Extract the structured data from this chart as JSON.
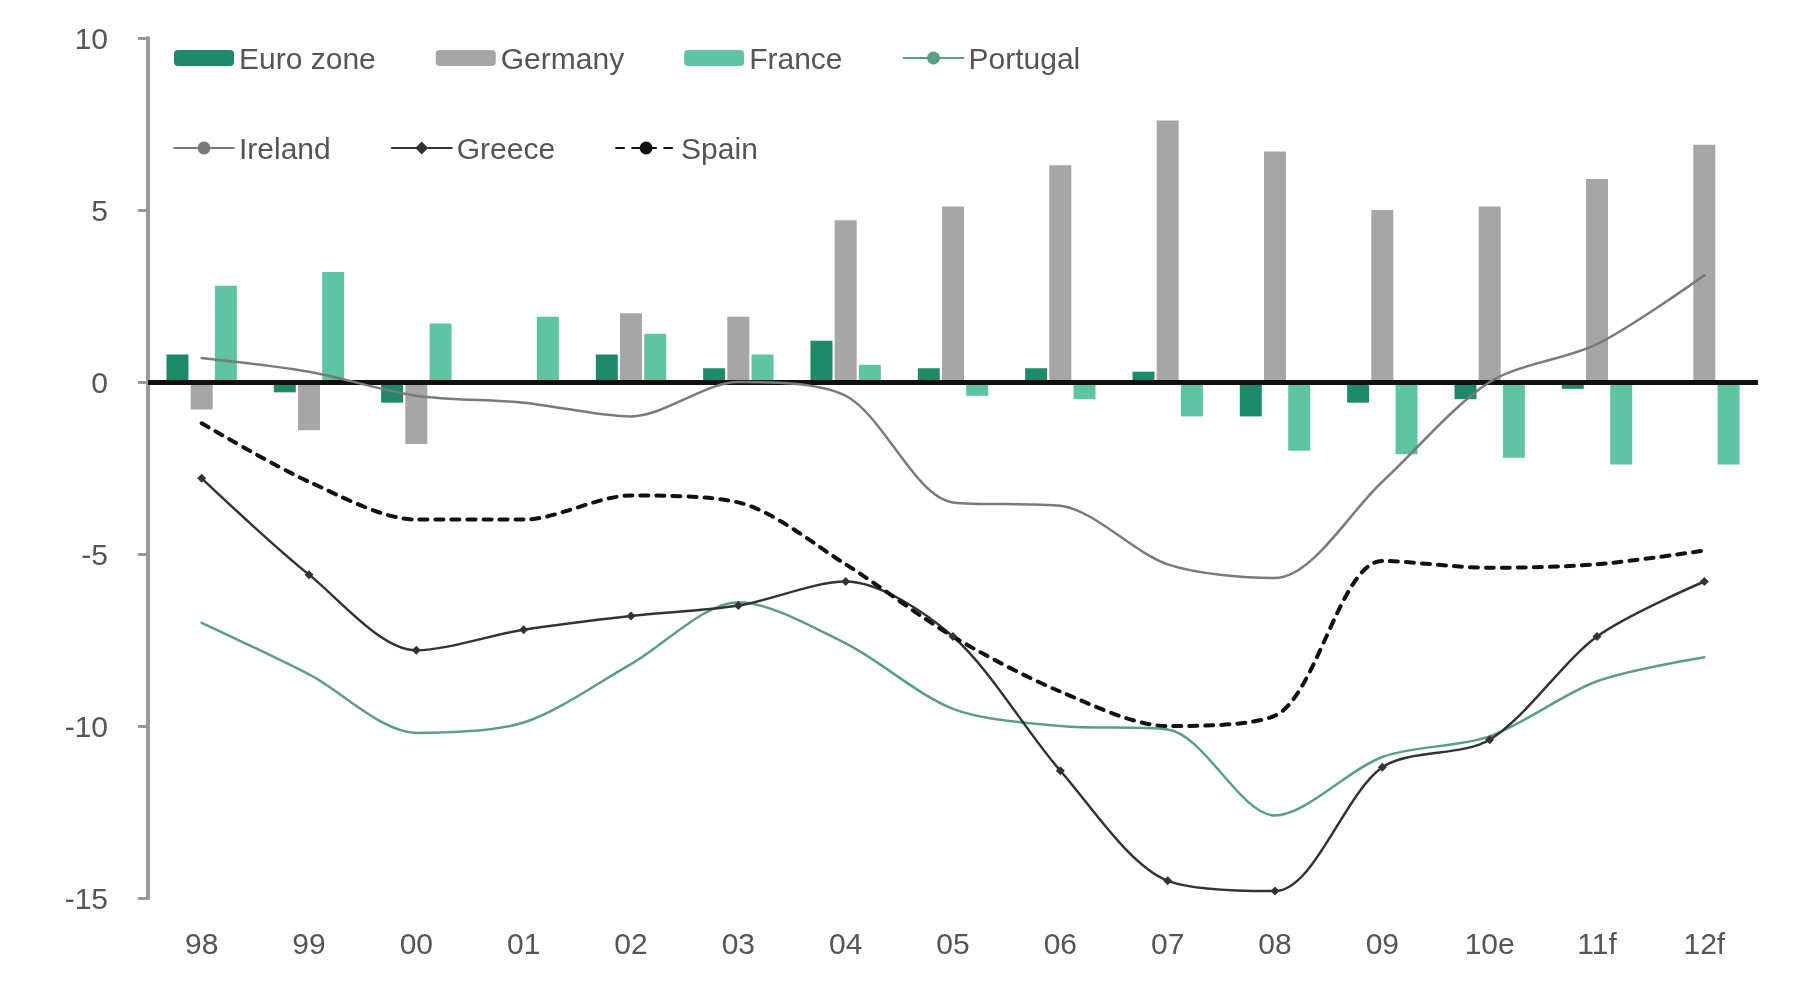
{
  "chart_data": {
    "type": "bar",
    "categories": [
      "98",
      "99",
      "00",
      "01",
      "02",
      "03",
      "04",
      "05",
      "06",
      "07",
      "08",
      "09",
      "10e",
      "11f",
      "12f"
    ],
    "series": [
      {
        "name": "Euro zone",
        "color": "#1f8a6a",
        "values": [
          0.8,
          -0.3,
          -0.6,
          null,
          0.8,
          0.4,
          1.2,
          0.4,
          0.4,
          0.3,
          -1.0,
          -0.6,
          -0.5,
          -0.2,
          null
        ]
      },
      {
        "name": "Germany",
        "color": "#a6a6a6",
        "values": [
          -0.8,
          -1.4,
          -1.8,
          0.0,
          2.0,
          1.9,
          4.7,
          5.1,
          6.3,
          7.6,
          6.7,
          5.0,
          5.1,
          5.9,
          6.9
        ]
      },
      {
        "name": "France",
        "color": "#5fc4a4",
        "values": [
          2.8,
          3.2,
          1.7,
          1.9,
          1.4,
          0.8,
          0.5,
          -0.4,
          -0.5,
          -1.0,
          -2.0,
          -2.1,
          -2.2,
          -2.4,
          -2.4
        ]
      },
      {
        "name": "Portugal",
        "type": "line",
        "color": "#5a9e8a",
        "line_style": "solid",
        "marker": "none",
        "values": [
          -7.0,
          -8.5,
          -10.2,
          -9.9,
          -8.2,
          -6.4,
          -7.6,
          -9.5,
          -10.0,
          -10.1,
          -12.6,
          -10.9,
          -10.3,
          -8.7,
          -8.0
        ]
      },
      {
        "name": "Ireland",
        "type": "line",
        "color": "#7a7a7a",
        "line_style": "solid",
        "marker": "none",
        "values": [
          0.7,
          0.3,
          -0.4,
          -0.6,
          -1.0,
          0.0,
          -0.4,
          -3.5,
          -3.6,
          -5.3,
          -5.7,
          -2.9,
          0.0,
          1.1,
          3.1
        ]
      },
      {
        "name": "Greece",
        "type": "line",
        "color": "#333333",
        "line_style": "solid",
        "marker": "diamond",
        "values": [
          -2.8,
          -5.6,
          -7.8,
          -7.2,
          -6.8,
          -6.5,
          -5.8,
          -7.4,
          -11.3,
          -14.5,
          -14.8,
          -11.2,
          -10.4,
          -7.4,
          -5.8
        ]
      },
      {
        "name": "Spain",
        "type": "line",
        "color": "#111111",
        "line_style": "dashed",
        "marker": "none",
        "values": [
          -1.2,
          -2.9,
          -4.0,
          -4.0,
          -3.3,
          -3.5,
          -5.3,
          -7.4,
          -9.0,
          -10.0,
          -9.7,
          -5.2,
          -5.4,
          -5.3,
          -4.9
        ]
      }
    ],
    "ylim": [
      -15,
      10
    ],
    "yticks": [
      -15,
      -10,
      -5,
      0,
      5,
      10
    ],
    "ref_lines": [
      {
        "axis": "y",
        "value": 0,
        "color": "#111111",
        "line_style": "solid"
      }
    ],
    "grid": false,
    "legend": "top left"
  }
}
